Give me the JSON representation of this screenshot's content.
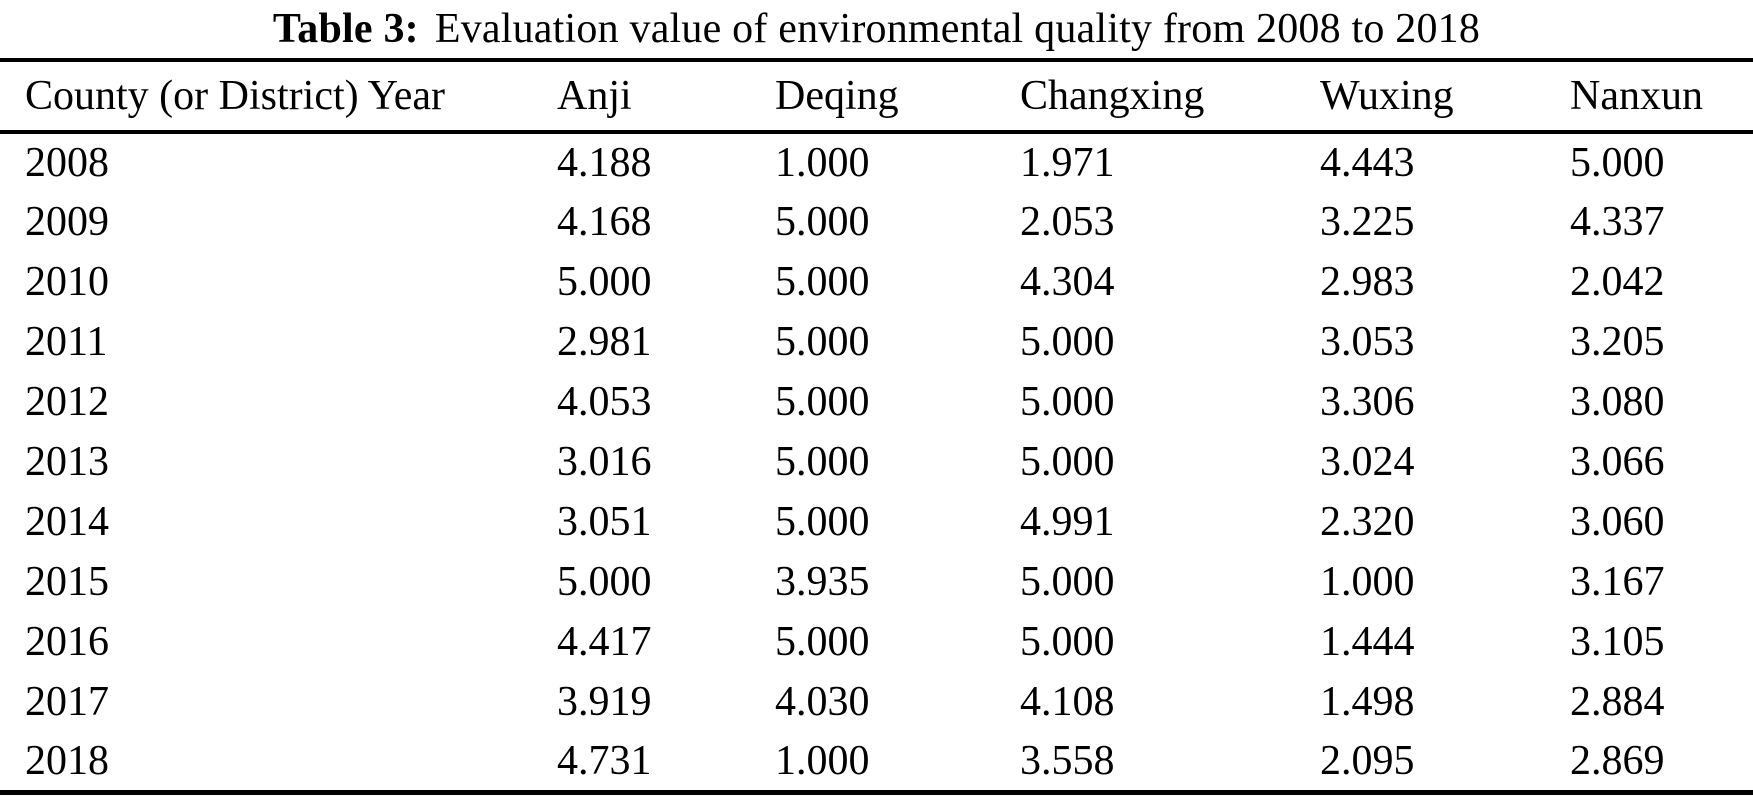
{
  "caption": {
    "label": "Table 3:",
    "text": "Evaluation value of environmental quality from 2008 to 2018"
  },
  "table": {
    "columns": [
      "County (or District) Year",
      "Anji",
      "Deqing",
      "Changxing",
      "Wuxing",
      "Nanxun"
    ],
    "rows": [
      {
        "year": "2008",
        "values": [
          "4.188",
          "1.000",
          "1.971",
          "4.443",
          "5.000"
        ]
      },
      {
        "year": "2009",
        "values": [
          "4.168",
          "5.000",
          "2.053",
          "3.225",
          "4.337"
        ]
      },
      {
        "year": "2010",
        "values": [
          "5.000",
          "5.000",
          "4.304",
          "2.983",
          "2.042"
        ]
      },
      {
        "year": "2011",
        "values": [
          "2.981",
          "5.000",
          "5.000",
          "3.053",
          "3.205"
        ]
      },
      {
        "year": "2012",
        "values": [
          "4.053",
          "5.000",
          "5.000",
          "3.306",
          "3.080"
        ]
      },
      {
        "year": "2013",
        "values": [
          "3.016",
          "5.000",
          "5.000",
          "3.024",
          "3.066"
        ]
      },
      {
        "year": "2014",
        "values": [
          "3.051",
          "5.000",
          "4.991",
          "2.320",
          "3.060"
        ]
      },
      {
        "year": "2015",
        "values": [
          "5.000",
          "3.935",
          "5.000",
          "1.000",
          "3.167"
        ]
      },
      {
        "year": "2016",
        "values": [
          "4.417",
          "5.000",
          "5.000",
          "1.444",
          "3.105"
        ]
      },
      {
        "year": "2017",
        "values": [
          "3.919",
          "4.030",
          "4.108",
          "1.498",
          "2.884"
        ]
      },
      {
        "year": "2018",
        "values": [
          "4.731",
          "1.000",
          "3.558",
          "2.095",
          "2.869"
        ]
      }
    ]
  },
  "chart_data": {
    "type": "table",
    "title": "Table 3: Evaluation value of environmental quality from 2008 to 2018",
    "categories": [
      "2008",
      "2009",
      "2010",
      "2011",
      "2012",
      "2013",
      "2014",
      "2015",
      "2016",
      "2017",
      "2018"
    ],
    "series": [
      {
        "name": "Anji",
        "values": [
          4.188,
          4.168,
          5.0,
          2.981,
          4.053,
          3.016,
          3.051,
          5.0,
          4.417,
          3.919,
          4.731
        ]
      },
      {
        "name": "Deqing",
        "values": [
          1.0,
          5.0,
          5.0,
          5.0,
          5.0,
          5.0,
          5.0,
          3.935,
          5.0,
          4.03,
          1.0
        ]
      },
      {
        "name": "Changxing",
        "values": [
          1.971,
          2.053,
          4.304,
          5.0,
          5.0,
          5.0,
          4.991,
          5.0,
          5.0,
          4.108,
          3.558
        ]
      },
      {
        "name": "Wuxing",
        "values": [
          4.443,
          3.225,
          2.983,
          3.053,
          3.306,
          3.024,
          2.32,
          1.0,
          1.444,
          1.498,
          2.095
        ]
      },
      {
        "name": "Nanxun",
        "values": [
          5.0,
          4.337,
          2.042,
          3.205,
          3.08,
          3.066,
          3.06,
          3.167,
          3.105,
          2.884,
          2.869
        ]
      }
    ]
  }
}
